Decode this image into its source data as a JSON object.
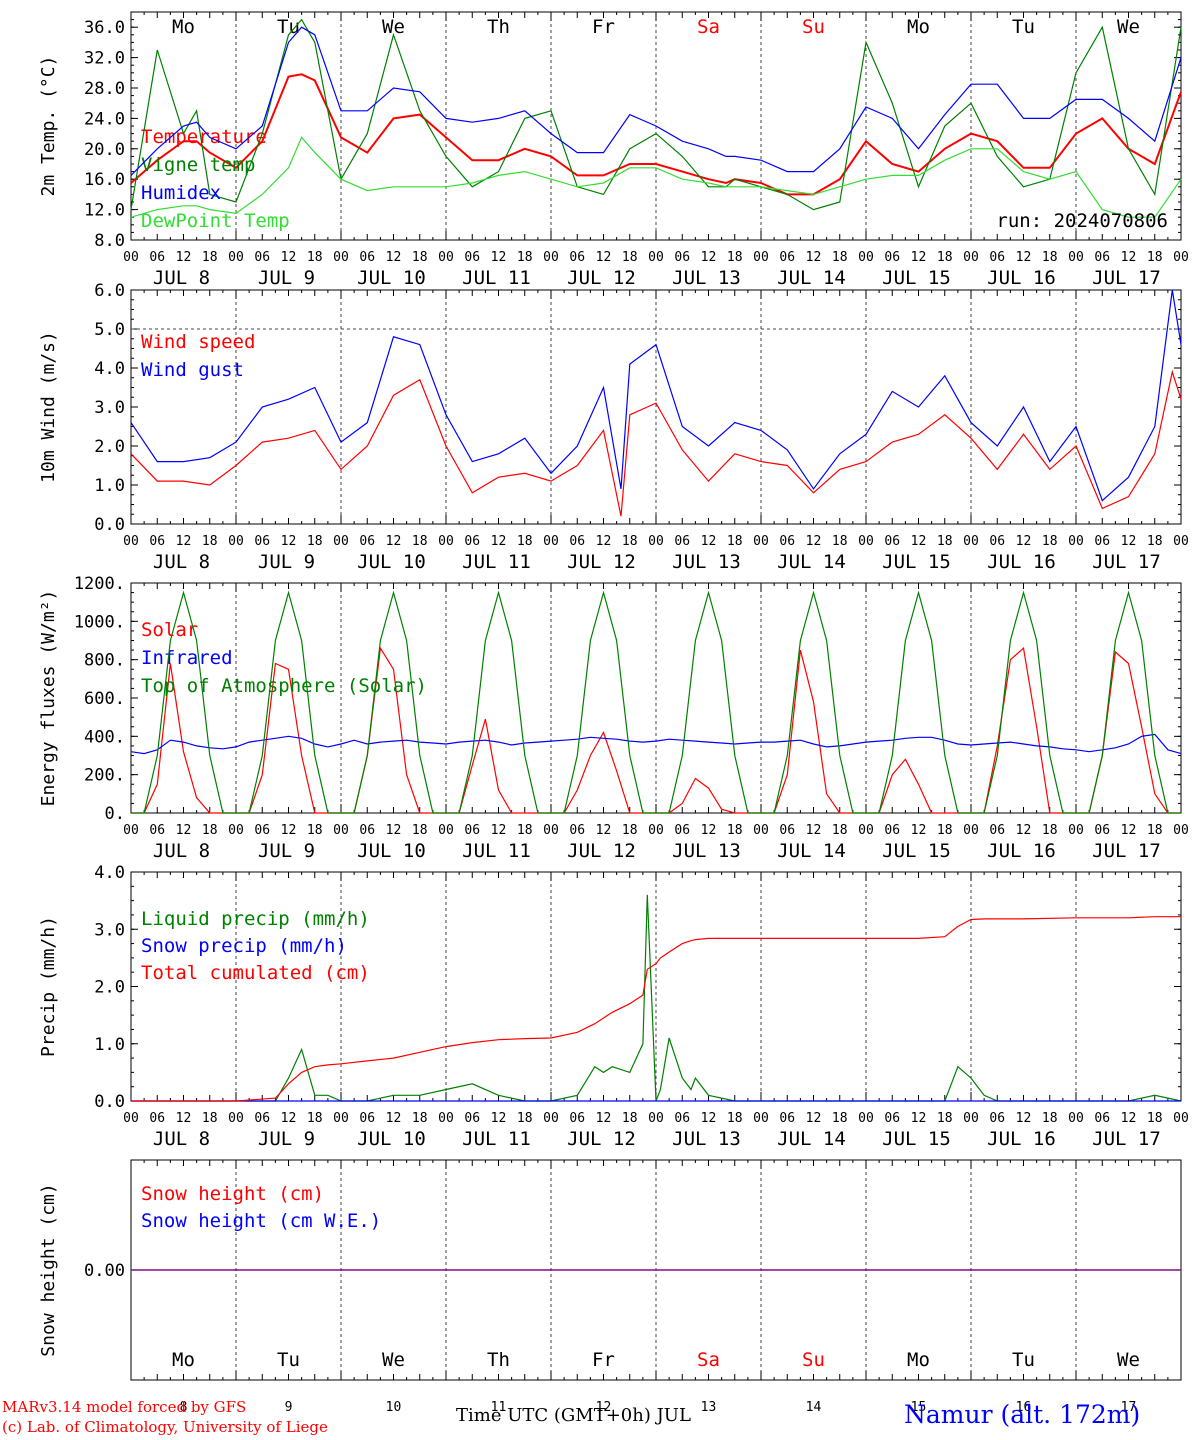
{
  "days": [
    "Mo",
    "Tu",
    "We",
    "Th",
    "Fr",
    "Sa",
    "Su",
    "Mo",
    "Tu",
    "We"
  ],
  "weekend_days": [
    5,
    6
  ],
  "date_labels": [
    "JUL  8",
    "JUL  9",
    "JUL 10",
    "JUL 11",
    "JUL 12",
    "JUL 13",
    "JUL 14",
    "JUL 15",
    "JUL 16",
    "JUL 17"
  ],
  "day_numbers": [
    "8",
    "9",
    "10",
    "11",
    "12",
    "13",
    "14",
    "15",
    "16",
    "17"
  ],
  "hour_ticks": [
    "00",
    "06",
    "12",
    "18"
  ],
  "end_hour_tick": "00",
  "colors": {
    "red": "#ff0000",
    "green": "#008000",
    "blue": "#0000ff",
    "lightgreen": "#33dd33",
    "purple": "#800080",
    "axis": "#000000"
  },
  "run_label": "run: 2024070806",
  "footer": {
    "model": "MARv3.14 model forced by GFS",
    "lab": "(c) Lab. of Climatology, University of Liege",
    "time_axis": "Time UTC (GMT+0h) JUL",
    "station": "Namur (alt. 172m)"
  },
  "chart_data": [
    {
      "type": "line",
      "ylabel": "2m Temp. (°C)",
      "ylim": [
        8,
        38
      ],
      "yticks": [
        "36.0",
        "32.0",
        "28.0",
        "24.0",
        "20.0",
        "16.0",
        "12.0",
        "8.0"
      ],
      "ytick_values": [
        36,
        32,
        28,
        24,
        20,
        16,
        12,
        8
      ],
      "x_hours": [
        0,
        6,
        12,
        15,
        18,
        24,
        30,
        36,
        39,
        42,
        48,
        54,
        60,
        66,
        72,
        78,
        84,
        90,
        96,
        102,
        108,
        114,
        120,
        126,
        132,
        136,
        138,
        144,
        150,
        156,
        162,
        168,
        174,
        180,
        186,
        192,
        198,
        204,
        210,
        216,
        222,
        228,
        234,
        240
      ],
      "series": [
        {
          "name": "Temperature",
          "color": "red",
          "values": [
            15.5,
            18.5,
            21,
            21,
            19.5,
            17.5,
            21,
            29.5,
            29.8,
            29,
            21.5,
            19.5,
            24,
            24.5,
            21.5,
            18.5,
            18.5,
            20,
            19,
            16.5,
            16.5,
            18,
            18,
            17,
            16,
            15.5,
            16,
            15.5,
            14,
            14,
            16,
            21,
            18,
            17,
            20,
            22,
            21,
            17.5,
            17.5,
            22,
            24,
            20,
            18,
            27.5
          ]
        },
        {
          "name": "Vigne temp",
          "color": "green",
          "values": [
            12,
            33,
            22,
            25,
            14,
            13,
            22,
            35,
            37,
            34,
            16,
            22,
            35,
            25,
            19,
            15,
            17,
            24,
            25,
            15,
            14,
            20,
            22,
            19,
            15,
            15,
            16,
            15,
            14,
            12,
            13,
            34,
            26,
            15,
            23,
            26,
            19,
            15,
            16,
            30,
            36,
            20,
            14,
            36
          ]
        },
        {
          "name": "Humidex",
          "color": "blue",
          "values": [
            16.5,
            20,
            23,
            23.5,
            21.5,
            20,
            23,
            34,
            36,
            35,
            25,
            25,
            28,
            27.5,
            24,
            23.5,
            24,
            25,
            22,
            19.5,
            19.5,
            24.5,
            23,
            21,
            20,
            19,
            19,
            18.5,
            17,
            17,
            20,
            25.5,
            24,
            20,
            24.5,
            28.5,
            28.5,
            24,
            24,
            26.5,
            26.5,
            24,
            21,
            32
          ]
        },
        {
          "name": "DewPoint Temp",
          "color": "lightgreen",
          "values": [
            11,
            12,
            12.5,
            12.5,
            12,
            11.5,
            14,
            17.5,
            21.5,
            19.5,
            16,
            14.5,
            15,
            15,
            15,
            15.5,
            16.5,
            17,
            16,
            15,
            15.5,
            17.5,
            17.5,
            16,
            15.5,
            15,
            15,
            15,
            14.5,
            14,
            15,
            16,
            16.5,
            16.5,
            18.5,
            20,
            20,
            17,
            16,
            17,
            12,
            11,
            11,
            16
          ]
        }
      ]
    },
    {
      "type": "line",
      "ylabel": "10m Wind (m/s)",
      "ylim": [
        0,
        6
      ],
      "yticks": [
        "6.0",
        "5.0",
        "4.0",
        "3.0",
        "2.0",
        "1.0",
        "0.0"
      ],
      "ytick_values": [
        6,
        5,
        4,
        3,
        2,
        1,
        0
      ],
      "dashed_ref": 5,
      "x_hours": [
        0,
        6,
        12,
        18,
        24,
        30,
        36,
        42,
        48,
        54,
        60,
        66,
        72,
        78,
        84,
        90,
        96,
        102,
        108,
        112,
        114,
        120,
        126,
        132,
        138,
        144,
        150,
        156,
        162,
        168,
        174,
        180,
        186,
        192,
        198,
        204,
        210,
        216,
        222,
        228,
        234,
        238,
        240
      ],
      "series": [
        {
          "name": "Wind speed",
          "color": "red",
          "values": [
            1.8,
            1.1,
            1.1,
            1.0,
            1.5,
            2.1,
            2.2,
            2.4,
            1.4,
            2.0,
            3.3,
            3.7,
            2.0,
            0.8,
            1.2,
            1.3,
            1.1,
            1.5,
            2.4,
            0.2,
            2.8,
            3.1,
            1.9,
            1.1,
            1.8,
            1.6,
            1.5,
            0.8,
            1.4,
            1.6,
            2.1,
            2.3,
            2.8,
            2.2,
            1.4,
            2.3,
            1.4,
            2.0,
            0.4,
            0.7,
            1.8,
            3.9,
            3.2
          ]
        },
        {
          "name": "Wind gust",
          "color": "blue",
          "values": [
            2.6,
            1.6,
            1.6,
            1.7,
            2.1,
            3.0,
            3.2,
            3.5,
            2.1,
            2.6,
            4.8,
            4.6,
            2.8,
            1.6,
            1.8,
            2.2,
            1.3,
            2.0,
            3.5,
            0.9,
            4.1,
            4.6,
            2.5,
            2.0,
            2.6,
            2.4,
            1.9,
            0.9,
            1.8,
            2.3,
            3.4,
            3.0,
            3.8,
            2.6,
            2.0,
            3.0,
            1.6,
            2.5,
            0.6,
            1.2,
            2.5,
            6.0,
            4.6
          ]
        }
      ]
    },
    {
      "type": "line",
      "ylabel": "Energy fluxes (W/m²)",
      "ylim": [
        0,
        1200
      ],
      "yticks": [
        "1200.",
        "1000.",
        "800.",
        "600.",
        "400.",
        "200.",
        "0."
      ],
      "ytick_values": [
        1200,
        1000,
        800,
        600,
        400,
        200,
        0
      ],
      "x_hours": [
        0,
        3,
        6,
        9,
        12,
        15,
        18,
        21,
        24,
        27,
        30,
        33,
        36,
        39,
        42,
        45,
        48,
        51,
        54,
        57,
        60,
        63,
        66,
        69,
        72,
        75,
        78,
        81,
        84,
        87,
        90,
        93,
        96,
        99,
        102,
        105,
        108,
        111,
        114,
        117,
        120,
        123,
        126,
        129,
        132,
        135,
        138,
        141,
        144,
        147,
        150,
        153,
        156,
        159,
        162,
        165,
        168,
        171,
        174,
        177,
        180,
        183,
        186,
        189,
        192,
        195,
        198,
        201,
        204,
        207,
        210,
        213,
        216,
        219,
        222,
        225,
        228,
        231,
        234,
        237,
        240
      ],
      "series": [
        {
          "name": "Solar",
          "color": "red",
          "values": [
            0,
            0,
            150,
            780,
            320,
            80,
            0,
            0,
            0,
            0,
            200,
            780,
            750,
            300,
            0,
            0,
            0,
            0,
            300,
            860,
            750,
            200,
            0,
            0,
            0,
            0,
            250,
            490,
            120,
            0,
            0,
            0,
            0,
            0,
            120,
            300,
            420,
            220,
            0,
            0,
            0,
            0,
            50,
            180,
            130,
            20,
            0,
            0,
            0,
            0,
            200,
            850,
            580,
            100,
            0,
            0,
            0,
            0,
            200,
            280,
            150,
            0,
            0,
            0,
            0,
            0,
            350,
            800,
            860,
            450,
            0,
            0,
            0,
            0,
            300,
            840,
            780,
            450,
            100,
            0,
            0
          ]
        },
        {
          "name": "Infrared",
          "color": "blue",
          "values": [
            320,
            310,
            330,
            380,
            370,
            350,
            340,
            335,
            345,
            370,
            380,
            390,
            400,
            390,
            360,
            345,
            360,
            380,
            360,
            370,
            375,
            380,
            370,
            365,
            360,
            370,
            375,
            380,
            370,
            355,
            365,
            370,
            375,
            380,
            385,
            395,
            390,
            385,
            375,
            370,
            375,
            385,
            380,
            375,
            370,
            365,
            360,
            365,
            370,
            370,
            375,
            380,
            360,
            345,
            350,
            360,
            370,
            375,
            380,
            390,
            395,
            395,
            380,
            360,
            355,
            360,
            365,
            370,
            360,
            350,
            345,
            335,
            330,
            320,
            330,
            340,
            360,
            400,
            410,
            330,
            310
          ]
        },
        {
          "name": "Top of Atmosphere (Solar)",
          "color": "green",
          "values": [
            0,
            0,
            300,
            900,
            1150,
            900,
            300,
            0,
            0,
            0,
            300,
            900,
            1150,
            900,
            300,
            0,
            0,
            0,
            300,
            900,
            1150,
            900,
            300,
            0,
            0,
            0,
            300,
            900,
            1150,
            900,
            300,
            0,
            0,
            0,
            300,
            900,
            1150,
            900,
            300,
            0,
            0,
            0,
            300,
            900,
            1150,
            900,
            300,
            0,
            0,
            0,
            300,
            900,
            1150,
            900,
            300,
            0,
            0,
            0,
            300,
            900,
            1150,
            900,
            300,
            0,
            0,
            0,
            300,
            900,
            1150,
            900,
            300,
            0,
            0,
            0,
            300,
            900,
            1150,
            900,
            300,
            0,
            0
          ]
        }
      ]
    },
    {
      "type": "line",
      "ylabel": "Precip (mm/h)",
      "ylim": [
        0,
        4
      ],
      "yticks": [
        "4.0",
        "3.0",
        "2.0",
        "1.0",
        "0.0"
      ],
      "ytick_values": [
        4,
        3,
        2,
        1,
        0
      ],
      "x_hours": [
        0,
        12,
        24,
        33,
        36,
        39,
        42,
        45,
        48,
        54,
        60,
        66,
        72,
        78,
        84,
        90,
        96,
        102,
        106,
        108,
        110,
        114,
        117,
        118,
        120,
        121,
        123,
        126,
        128,
        129,
        132,
        138,
        144,
        150,
        156,
        162,
        168,
        174,
        180,
        186,
        189,
        192,
        195,
        198,
        204,
        216,
        222,
        228,
        234,
        240
      ],
      "series": [
        {
          "name": "Liquid precip (mm/h)",
          "color": "green",
          "values": [
            0,
            0,
            0,
            0,
            0.4,
            0.9,
            0.1,
            0.1,
            0,
            0,
            0.1,
            0.1,
            0.2,
            0.3,
            0.1,
            0,
            0,
            0.1,
            0.6,
            0.5,
            0.6,
            0.5,
            1.0,
            3.6,
            0,
            0.2,
            1.1,
            0.4,
            0.2,
            0.4,
            0.1,
            0,
            0,
            0,
            0,
            0,
            0,
            0,
            0,
            0,
            0.6,
            0.4,
            0.1,
            0,
            0,
            0,
            0,
            0,
            0.1,
            0
          ]
        },
        {
          "name": "Snow precip (mm/h)",
          "color": "blue",
          "values": [
            0,
            0,
            0,
            0,
            0,
            0,
            0,
            0,
            0,
            0,
            0,
            0,
            0,
            0,
            0,
            0,
            0,
            0,
            0,
            0,
            0,
            0,
            0,
            0,
            0,
            0,
            0,
            0,
            0,
            0,
            0,
            0,
            0,
            0,
            0,
            0,
            0,
            0,
            0,
            0,
            0,
            0,
            0,
            0,
            0,
            0,
            0,
            0,
            0,
            0
          ]
        },
        {
          "name": "Total cumulated (cm)",
          "color": "red",
          "values": [
            0,
            0,
            0,
            0.05,
            0.3,
            0.5,
            0.6,
            0.63,
            0.65,
            0.7,
            0.75,
            0.85,
            0.95,
            1.02,
            1.07,
            1.09,
            1.1,
            1.2,
            1.35,
            1.45,
            1.55,
            1.7,
            1.85,
            2.3,
            2.4,
            2.5,
            2.6,
            2.75,
            2.8,
            2.82,
            2.84,
            2.84,
            2.84,
            2.84,
            2.84,
            2.84,
            2.84,
            2.84,
            2.84,
            2.87,
            3.05,
            3.17,
            3.18,
            3.18,
            3.18,
            3.2,
            3.2,
            3.2,
            3.22,
            3.22
          ]
        }
      ]
    },
    {
      "type": "line",
      "ylabel": "Snow height (cm)",
      "ylim": [
        -1,
        1
      ],
      "yticks": [
        "0.00"
      ],
      "ytick_values": [
        0
      ],
      "x_hours": [
        0,
        240
      ],
      "series": [
        {
          "name": "Snow height (cm)",
          "color": "red",
          "values": [
            0,
            0
          ]
        },
        {
          "name": "Snow height (cm W.E.)",
          "color": "blue",
          "values": [
            0,
            0
          ]
        }
      ]
    }
  ]
}
